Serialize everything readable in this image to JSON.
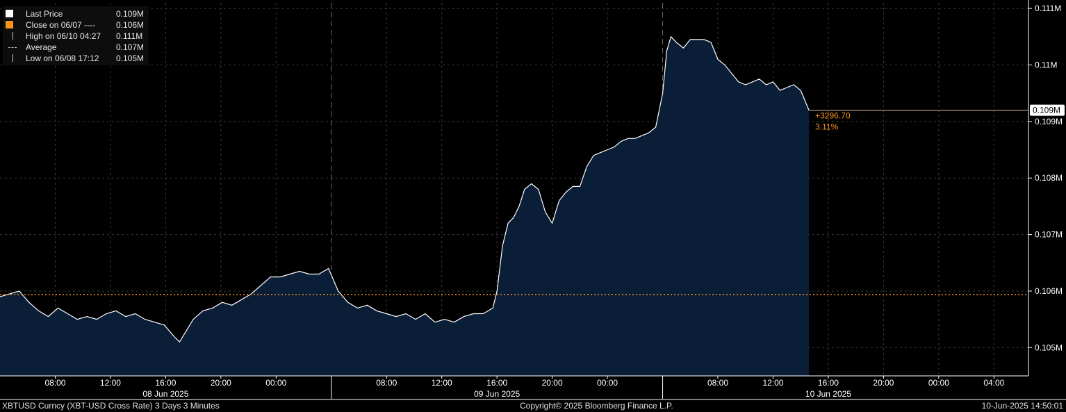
{
  "legend": [
    {
      "label": "Last Price",
      "value": "0.109M",
      "swatch": "#ffffff",
      "kind": "square"
    },
    {
      "label": "Close on 06/07 ----",
      "value": "0.106M",
      "swatch": "#f7931a",
      "kind": "square"
    },
    {
      "label": "High on 06/10 04:27",
      "value": "0.111M",
      "swatch": "#cccccc",
      "kind": "high"
    },
    {
      "label": "Average",
      "value": "0.107M",
      "swatch": "#cccccc",
      "kind": "avg"
    },
    {
      "label": "Low on 06/08 17:12",
      "value": "0.105M",
      "swatch": "#cccccc",
      "kind": "low"
    }
  ],
  "annotations": {
    "last_tag": "0.109M",
    "change_abs": "+3296.70",
    "change_pct": "3.11%"
  },
  "footer": {
    "left": "XBTUSD Curncy (XBT-USD Cross Rate) 3 Days 3 Minutes",
    "center": "Copyright© 2025 Bloomberg Finance L.P.",
    "right": "10-Jun-2025 14:50:01"
  },
  "colors": {
    "background": "#000000",
    "area_fill": "#0b1e38",
    "line": "#ffffff",
    "close_line": "#f7931a",
    "grid": "#3a3a3a",
    "axis_text": "#ffffff"
  },
  "chart_data": {
    "type": "area",
    "title": "",
    "xlabel": "",
    "ylabel": "",
    "ylim": [
      0.1045,
      0.1111
    ],
    "y_ticks": [
      {
        "value": 0.111,
        "label": "0.111M"
      },
      {
        "value": 0.11,
        "label": "0.11M"
      },
      {
        "value": 0.109,
        "label": "0.109M"
      },
      {
        "value": 0.108,
        "label": "0.108M"
      },
      {
        "value": 0.107,
        "label": "0.107M"
      },
      {
        "value": 0.106,
        "label": "0.106M"
      },
      {
        "value": 0.105,
        "label": "0.105M"
      }
    ],
    "xlim_hours": [
      0,
      74.5
    ],
    "x_ticks": [
      {
        "h": 4,
        "label": "08:00"
      },
      {
        "h": 8,
        "label": "12:00"
      },
      {
        "h": 12,
        "label": "16:00"
      },
      {
        "h": 16,
        "label": "20:00"
      },
      {
        "h": 20,
        "label": "00:00"
      },
      {
        "h": 28,
        "label": "08:00"
      },
      {
        "h": 32,
        "label": "12:00"
      },
      {
        "h": 36,
        "label": "16:00"
      },
      {
        "h": 40,
        "label": "20:00"
      },
      {
        "h": 44,
        "label": "00:00"
      },
      {
        "h": 52,
        "label": "08:00"
      },
      {
        "h": 56,
        "label": "12:00"
      },
      {
        "h": 60,
        "label": "16:00"
      },
      {
        "h": 64,
        "label": "20:00"
      },
      {
        "h": 68,
        "label": "00:00"
      },
      {
        "h": 72,
        "label": "04:00"
      }
    ],
    "day_labels": [
      {
        "h": 12,
        "label": "08 Jun 2025"
      },
      {
        "h": 36,
        "label": "09 Jun 2025"
      },
      {
        "h": 60,
        "label": "10 Jun 2025"
      }
    ],
    "day_dividers": [
      24,
      48
    ],
    "series": [
      {
        "name": "Last Price",
        "x": [
          0,
          0.7,
          1.4,
          2.1,
          2.8,
          3.5,
          4.2,
          4.9,
          5.6,
          6.3,
          7.0,
          7.7,
          8.4,
          9.1,
          9.8,
          10.5,
          11.2,
          11.9,
          12.6,
          13.0,
          13.5,
          14.0,
          14.7,
          15.4,
          16.1,
          16.8,
          17.5,
          18.2,
          18.9,
          19.6,
          20.3,
          21.0,
          21.7,
          22.4,
          23.1,
          23.8,
          24.5,
          25.2,
          25.9,
          26.6,
          27.3,
          28.0,
          28.7,
          29.4,
          30.1,
          30.8,
          31.5,
          32.2,
          32.9,
          33.6,
          34.3,
          35.0,
          35.7,
          36.0,
          36.4,
          36.8,
          37.2,
          37.6,
          38.0,
          38.5,
          39.0,
          39.5,
          40.0,
          40.5,
          41.0,
          41.5,
          42.0,
          42.5,
          43.0,
          43.5,
          44.0,
          44.5,
          45.0,
          45.5,
          46.0,
          46.5,
          47.0,
          47.5,
          48.0,
          48.3,
          48.6,
          49.0,
          49.5,
          50.0,
          50.5,
          51.0,
          51.5,
          52.0,
          52.5,
          53.0,
          53.5,
          54.0,
          54.5,
          55.0,
          55.5,
          56.0,
          56.5,
          57.0,
          57.5,
          58.0,
          58.6
        ],
        "values": [
          0.1059,
          0.10595,
          0.106,
          0.1058,
          0.10565,
          0.10555,
          0.1057,
          0.1056,
          0.1055,
          0.10555,
          0.1055,
          0.1056,
          0.10565,
          0.10555,
          0.1056,
          0.1055,
          0.10545,
          0.1054,
          0.1052,
          0.1051,
          0.1053,
          0.1055,
          0.10565,
          0.1057,
          0.1058,
          0.10575,
          0.10585,
          0.10595,
          0.1061,
          0.10625,
          0.10625,
          0.1063,
          0.10635,
          0.1063,
          0.1063,
          0.1064,
          0.106,
          0.1058,
          0.1057,
          0.10575,
          0.10565,
          0.1056,
          0.10555,
          0.1056,
          0.1055,
          0.1056,
          0.10545,
          0.1055,
          0.10545,
          0.10555,
          0.1056,
          0.1056,
          0.1057,
          0.106,
          0.1068,
          0.1072,
          0.1073,
          0.1075,
          0.1078,
          0.1079,
          0.1078,
          0.1074,
          0.1072,
          0.1076,
          0.10775,
          0.10785,
          0.10785,
          0.1082,
          0.1084,
          0.10845,
          0.1085,
          0.10855,
          0.10865,
          0.1087,
          0.1087,
          0.10875,
          0.1088,
          0.1089,
          0.1095,
          0.11025,
          0.1105,
          0.1104,
          0.1103,
          0.11045,
          0.11045,
          0.11045,
          0.1104,
          0.1101,
          0.11,
          0.10985,
          0.1097,
          0.10965,
          0.1097,
          0.10975,
          0.10965,
          0.1097,
          0.10955,
          0.1096,
          0.10965,
          0.10955,
          0.1092
        ]
      }
    ],
    "reference_lines": [
      {
        "name": "Close on 06/07",
        "value": 0.10594
      }
    ],
    "grid": true,
    "legend_position": "top-left"
  }
}
